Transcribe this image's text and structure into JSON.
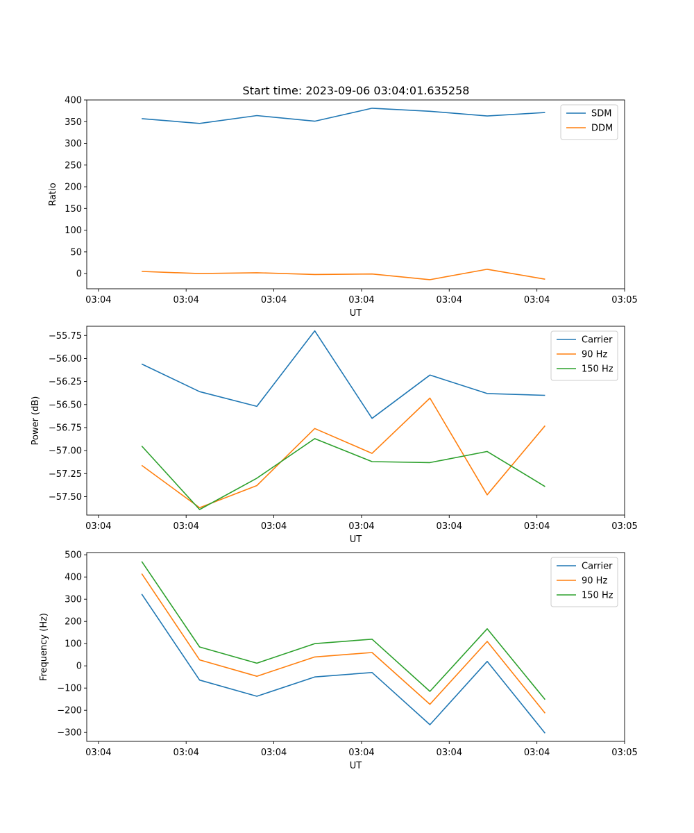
{
  "figure_title": "Start time: 2023-09-06 03:04:01.635258",
  "chart_data": [
    {
      "type": "line",
      "xlabel": "UT",
      "ylabel": "Ratio",
      "ylim": [
        -35,
        400
      ],
      "yticks": [
        0,
        50,
        100,
        150,
        200,
        250,
        300,
        350,
        400
      ],
      "xlim": [
        -0.2,
        9.0
      ],
      "xticks": [
        0,
        1.5,
        3,
        4.5,
        6,
        7.5,
        9
      ],
      "xtick_labels": [
        "03:04",
        "03:04",
        "03:04",
        "03:04",
        "03:04",
        "03:04",
        "03:05"
      ],
      "x": [
        0.74,
        1.73,
        2.71,
        3.7,
        4.68,
        5.67,
        6.65,
        7.64
      ],
      "legend": "top-right",
      "series": [
        {
          "name": "SDM",
          "color": "#1f77b4",
          "values": [
            357,
            346,
            364,
            351,
            381,
            374,
            363,
            371
          ]
        },
        {
          "name": "DDM",
          "color": "#ff7f0e",
          "values": [
            5,
            0,
            2,
            -2,
            -1,
            -14,
            10,
            -13
          ]
        }
      ]
    },
    {
      "type": "line",
      "xlabel": "UT",
      "ylabel": "Power (dB)",
      "ylim": [
        -57.7,
        -55.65
      ],
      "yticks": [
        -57.5,
        -57.25,
        -57.0,
        -56.75,
        -56.5,
        -56.25,
        -56.0,
        -55.75
      ],
      "ytick_labels": [
        "−57.50",
        "−57.25",
        "−57.00",
        "−56.75",
        "−56.50",
        "−56.25",
        "−56.00",
        "−55.75"
      ],
      "xlim": [
        -0.2,
        9.0
      ],
      "xticks": [
        0,
        1.5,
        3,
        4.5,
        6,
        7.5,
        9
      ],
      "xtick_labels": [
        "03:04",
        "03:04",
        "03:04",
        "03:04",
        "03:04",
        "03:04",
        "03:05"
      ],
      "x": [
        0.74,
        1.73,
        2.71,
        3.7,
        4.68,
        5.67,
        6.65,
        7.64
      ],
      "legend": "top-right",
      "series": [
        {
          "name": "Carrier",
          "color": "#1f77b4",
          "values": [
            -56.06,
            -56.36,
            -56.52,
            -55.7,
            -56.65,
            -56.18,
            -56.38,
            -56.4
          ]
        },
        {
          "name": "90 Hz",
          "color": "#ff7f0e",
          "values": [
            -57.16,
            -57.62,
            -57.38,
            -56.76,
            -57.03,
            -56.43,
            -57.48,
            -56.73
          ]
        },
        {
          "name": "150 Hz",
          "color": "#2ca02c",
          "values": [
            -56.95,
            -57.64,
            -57.3,
            -56.87,
            -57.12,
            -57.13,
            -57.01,
            -57.39
          ]
        }
      ]
    },
    {
      "type": "line",
      "xlabel": "UT",
      "ylabel": "Frequency (Hz)",
      "ylim": [
        -340,
        510
      ],
      "yticks": [
        -300,
        -200,
        -100,
        0,
        100,
        200,
        300,
        400,
        500
      ],
      "ytick_labels": [
        "−300",
        "−200",
        "−100",
        "0",
        "100",
        "200",
        "300",
        "400",
        "500"
      ],
      "xlim": [
        -0.2,
        9.0
      ],
      "xticks": [
        0,
        1.5,
        3,
        4.5,
        6,
        7.5,
        9
      ],
      "xtick_labels": [
        "03:04",
        "03:04",
        "03:04",
        "03:04",
        "03:04",
        "03:04",
        "03:05"
      ],
      "x": [
        0.74,
        1.73,
        2.71,
        3.7,
        4.68,
        5.67,
        6.65,
        7.64
      ],
      "legend": "top-right",
      "series": [
        {
          "name": "Carrier",
          "color": "#1f77b4",
          "values": [
            323,
            -64,
            -137,
            -50,
            -30,
            -265,
            20,
            -303
          ]
        },
        {
          "name": "90 Hz",
          "color": "#ff7f0e",
          "values": [
            415,
            27,
            -47,
            40,
            60,
            -173,
            110,
            -213
          ]
        },
        {
          "name": "150 Hz",
          "color": "#2ca02c",
          "values": [
            470,
            85,
            12,
            100,
            120,
            -115,
            167,
            -152
          ]
        }
      ]
    }
  ]
}
